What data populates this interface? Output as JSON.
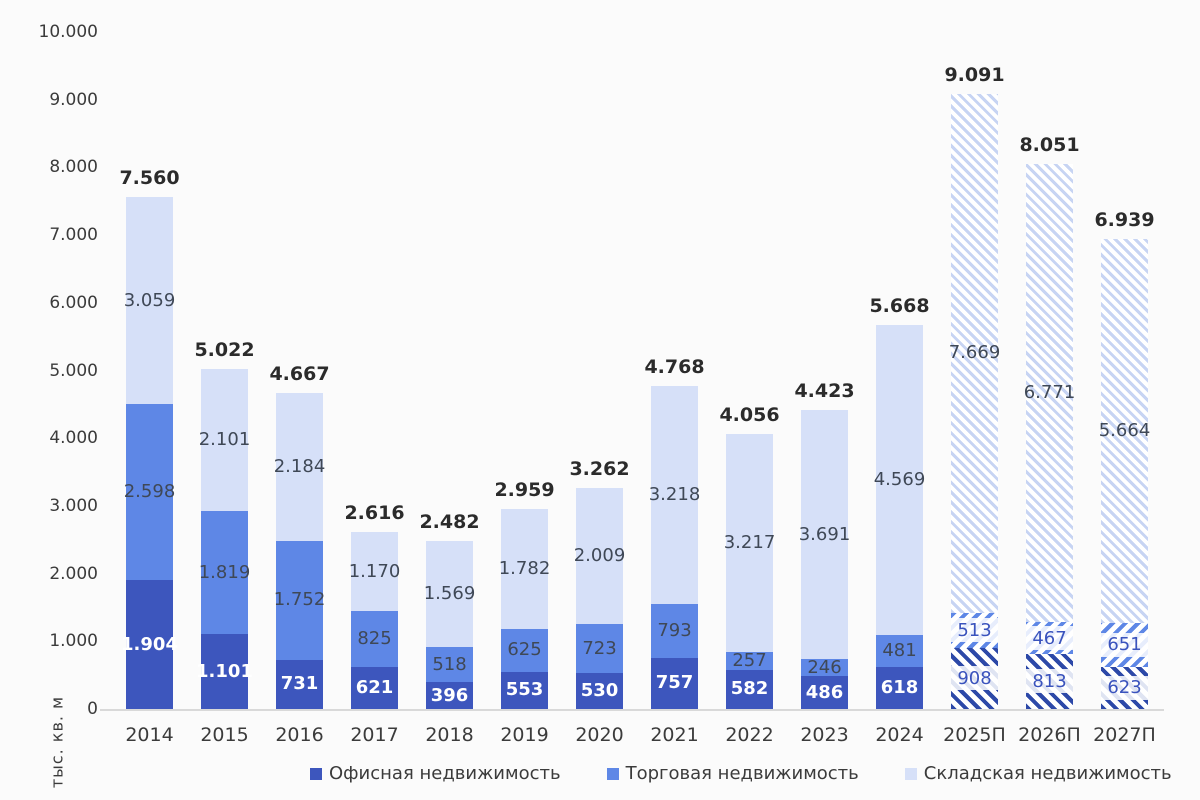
{
  "chart_data": {
    "type": "bar",
    "stacked": true,
    "title": "",
    "ylabel": "тыс. кв. м",
    "ylim": [
      0,
      10000
    ],
    "y_tick_step": 1000,
    "y_tick_labels": [
      "0",
      "1.000",
      "2.000",
      "3.000",
      "4.000",
      "5.000",
      "6.000",
      "7.000",
      "8.000",
      "9.000",
      "10.000"
    ],
    "grid": false,
    "legend_position": "bottom",
    "categories": [
      "2014",
      "2015",
      "2016",
      "2017",
      "2018",
      "2019",
      "2020",
      "2021",
      "2022",
      "2023",
      "2024",
      "2025П",
      "2026П",
      "2027П"
    ],
    "forecast_flags": [
      false,
      false,
      false,
      false,
      false,
      false,
      false,
      false,
      false,
      false,
      false,
      true,
      true,
      true
    ],
    "series": [
      {
        "key": "office",
        "name": "Офисная недвижимость",
        "color": "#3d56bd",
        "hatch_color": "#2d49a8",
        "label_color_solid": "#ffffff",
        "label_weight_solid": 600,
        "values": [
          1904,
          1101,
          731,
          621,
          396,
          553,
          530,
          757,
          582,
          486,
          618,
          908,
          813,
          623
        ],
        "display_values": [
          "1.904",
          "1.101",
          "731",
          "621",
          "396",
          "553",
          "530",
          "757",
          "582",
          "486",
          "618",
          "908",
          "813",
          "623"
        ]
      },
      {
        "key": "retail",
        "name": "Торговая недвижимость",
        "color": "#5e87e6",
        "hatch_color": "#5e87e6",
        "label_color_solid": "#3f4856",
        "label_weight_solid": 400,
        "values": [
          2598,
          1819,
          1752,
          825,
          518,
          625,
          723,
          793,
          257,
          246,
          481,
          513,
          467,
          651
        ],
        "display_values": [
          "2.598",
          "1.819",
          "1.752",
          "825",
          "518",
          "625",
          "723",
          "793",
          "257",
          "246",
          "481",
          "513",
          "467",
          "651"
        ]
      },
      {
        "key": "warehouse",
        "name": "Складская недвижимость",
        "color": "#d6e0f8",
        "hatch_color": "#c7d4f3",
        "label_color_solid": "#3f4856",
        "label_weight_solid": 400,
        "values": [
          3059,
          2101,
          2184,
          1170,
          1569,
          1782,
          2009,
          3218,
          3217,
          3691,
          4569,
          7669,
          6771,
          5664
        ],
        "display_values": [
          "3.059",
          "2.101",
          "2.184",
          "1.170",
          "1.569",
          "1.782",
          "2.009",
          "3.218",
          "3.217",
          "3.691",
          "4.569",
          "7.669",
          "6.771",
          "5.664"
        ]
      }
    ],
    "totals": [
      7560,
      5022,
      4667,
      2616,
      2482,
      2959,
      3262,
      4768,
      4056,
      4423,
      5668,
      9091,
      8051,
      6939
    ],
    "totals_display": [
      "7.560",
      "5.022",
      "4.667",
      "2.616",
      "2.482",
      "2.959",
      "3.262",
      "4.768",
      "4.056",
      "4.423",
      "5.668",
      "9.091",
      "8.051",
      "6.939"
    ],
    "forecast_label_color": "#3a53bd"
  }
}
